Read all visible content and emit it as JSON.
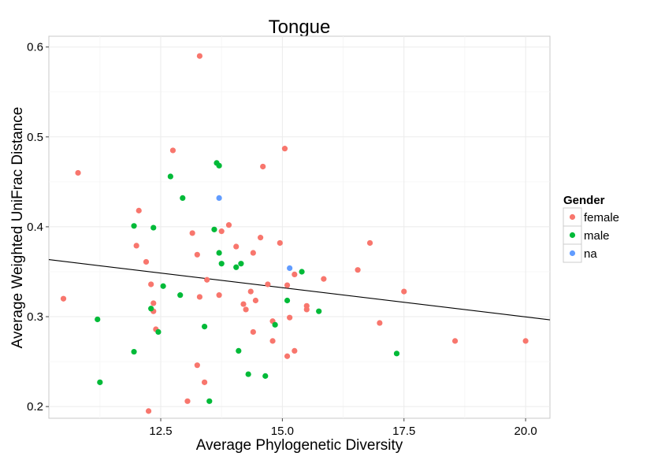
{
  "chart_data": {
    "type": "scatter",
    "title": "Tongue",
    "xlabel": "Average Phylogenetic Diversity",
    "ylabel": "Average Weighted UniFrac Distance",
    "xlim": [
      10.2,
      20.5
    ],
    "ylim": [
      0.187,
      0.612
    ],
    "x_ticks": [
      12.5,
      15.0,
      17.5,
      20.0
    ],
    "x_tick_labels": [
      "12.5",
      "15.0",
      "17.5",
      "20.0"
    ],
    "y_ticks": [
      0.2,
      0.3,
      0.4,
      0.5,
      0.6
    ],
    "y_tick_labels": [
      "0.2",
      "0.3",
      "0.4",
      "0.5",
      "0.6"
    ],
    "grid": true,
    "legend": {
      "title": "Gender",
      "position": "right",
      "entries": [
        "female",
        "male",
        "na"
      ]
    },
    "colors": {
      "female": "#f8766d",
      "male": "#00ba38",
      "na": "#619cff"
    },
    "trend_line": {
      "x": [
        10.2,
        20.5
      ],
      "y": [
        0.3635,
        0.2965
      ]
    },
    "series": [
      {
        "name": "female",
        "color": "#f8766d",
        "points": [
          [
            10.5,
            0.32
          ],
          [
            10.8,
            0.46
          ],
          [
            12.0,
            0.379
          ],
          [
            12.05,
            0.418
          ],
          [
            12.2,
            0.361
          ],
          [
            12.25,
            0.195
          ],
          [
            12.3,
            0.336
          ],
          [
            12.35,
            0.306
          ],
          [
            12.35,
            0.315
          ],
          [
            12.4,
            0.286
          ],
          [
            12.75,
            0.485
          ],
          [
            13.05,
            0.206
          ],
          [
            13.15,
            0.393
          ],
          [
            13.25,
            0.246
          ],
          [
            13.25,
            0.369
          ],
          [
            13.3,
            0.59
          ],
          [
            13.3,
            0.322
          ],
          [
            13.4,
            0.227
          ],
          [
            13.45,
            0.341
          ],
          [
            13.7,
            0.324
          ],
          [
            13.75,
            0.395
          ],
          [
            13.9,
            0.402
          ],
          [
            14.05,
            0.378
          ],
          [
            14.2,
            0.314
          ],
          [
            14.25,
            0.308
          ],
          [
            14.35,
            0.328
          ],
          [
            14.4,
            0.371
          ],
          [
            14.4,
            0.283
          ],
          [
            14.45,
            0.318
          ],
          [
            14.55,
            0.388
          ],
          [
            14.6,
            0.467
          ],
          [
            14.7,
            0.336
          ],
          [
            14.8,
            0.273
          ],
          [
            14.8,
            0.295
          ],
          [
            14.95,
            0.382
          ],
          [
            15.05,
            0.487
          ],
          [
            15.1,
            0.335
          ],
          [
            15.1,
            0.256
          ],
          [
            15.15,
            0.299
          ],
          [
            15.25,
            0.347
          ],
          [
            15.25,
            0.262
          ],
          [
            15.5,
            0.312
          ],
          [
            15.5,
            0.308
          ],
          [
            15.85,
            0.342
          ],
          [
            16.55,
            0.352
          ],
          [
            16.8,
            0.382
          ],
          [
            17.0,
            0.293
          ],
          [
            17.5,
            0.328
          ],
          [
            18.55,
            0.273
          ],
          [
            20.0,
            0.273
          ]
        ]
      },
      {
        "name": "male",
        "color": "#00ba38",
        "points": [
          [
            11.2,
            0.297
          ],
          [
            11.25,
            0.227
          ],
          [
            11.95,
            0.401
          ],
          [
            11.95,
            0.261
          ],
          [
            12.3,
            0.309
          ],
          [
            12.35,
            0.399
          ],
          [
            12.45,
            0.283
          ],
          [
            12.55,
            0.334
          ],
          [
            12.7,
            0.456
          ],
          [
            12.9,
            0.324
          ],
          [
            12.95,
            0.432
          ],
          [
            13.4,
            0.289
          ],
          [
            13.5,
            0.206
          ],
          [
            13.6,
            0.397
          ],
          [
            13.65,
            0.471
          ],
          [
            13.7,
            0.468
          ],
          [
            13.7,
            0.371
          ],
          [
            13.75,
            0.359
          ],
          [
            14.05,
            0.355
          ],
          [
            14.1,
            0.262
          ],
          [
            14.15,
            0.359
          ],
          [
            14.3,
            0.236
          ],
          [
            14.65,
            0.234
          ],
          [
            14.85,
            0.291
          ],
          [
            15.1,
            0.318
          ],
          [
            15.4,
            0.35
          ],
          [
            15.75,
            0.306
          ],
          [
            17.35,
            0.259
          ]
        ]
      },
      {
        "name": "na",
        "color": "#619cff",
        "points": [
          [
            13.7,
            0.432
          ],
          [
            15.15,
            0.354
          ]
        ]
      }
    ]
  }
}
